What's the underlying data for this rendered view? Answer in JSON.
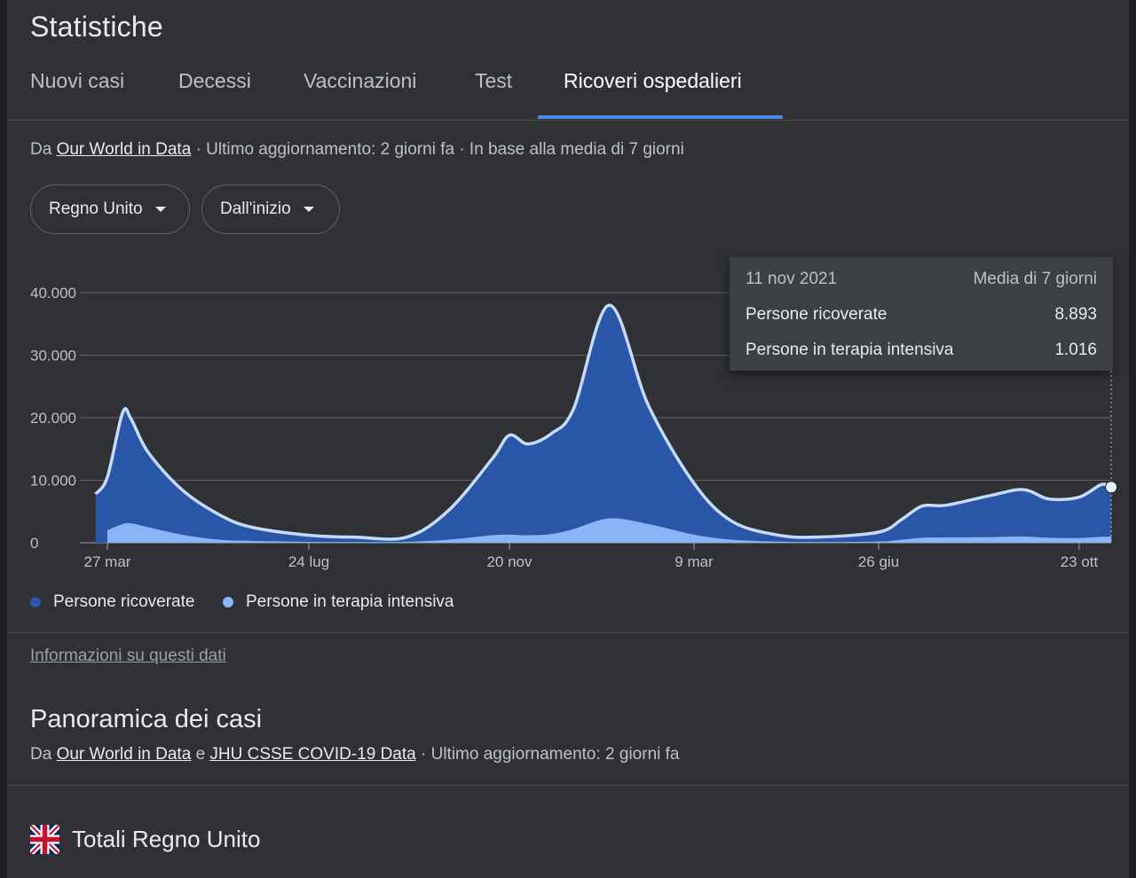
{
  "title": "Statistiche",
  "tabs": [
    {
      "label": "Nuovi casi"
    },
    {
      "label": "Decessi"
    },
    {
      "label": "Vaccinazioni"
    },
    {
      "label": "Test"
    },
    {
      "label": "Ricoveri ospedalieri",
      "active": true
    }
  ],
  "source": {
    "prefix": "Da",
    "link": "Our World in Data",
    "rest": "· Ultimo aggiornamento: 2 giorni fa · In base alla media di 7 giorni"
  },
  "filters": {
    "country": "Regno Unito",
    "range": "Dall'inizio"
  },
  "tooltip": {
    "date": "11 nov 2021",
    "note": "Media di 7 giorni",
    "rows": [
      {
        "label": "Persone ricoverate",
        "value": "8.893"
      },
      {
        "label": "Persone in terapia intensiva",
        "value": "1.016"
      }
    ]
  },
  "legend": [
    {
      "label": "Persone ricoverate",
      "color": "#2a56a8"
    },
    {
      "label": "Persone in terapia intensiva",
      "color": "#8ab4f8"
    }
  ],
  "chart_data": {
    "type": "area",
    "x_ticks": [
      "27 mar",
      "24 lug",
      "20 nov",
      "9 mar",
      "26 giu",
      "23 ott"
    ],
    "y_ticks": [
      "0",
      "10.000",
      "20.000",
      "30.000",
      "40.000"
    ],
    "ylim": [
      0,
      40000
    ],
    "grid": true,
    "legend_position": "bottom-left",
    "x": [
      "2020-03-20",
      "2020-03-27",
      "2020-04-05",
      "2020-04-10",
      "2020-04-20",
      "2020-05-10",
      "2020-06-01",
      "2020-06-20",
      "2020-07-24",
      "2020-08-20",
      "2020-09-20",
      "2020-10-15",
      "2020-11-10",
      "2020-11-20",
      "2020-12-01",
      "2020-12-15",
      "2020-12-28",
      "2021-01-18",
      "2021-02-10",
      "2021-03-09",
      "2021-03-31",
      "2021-04-26",
      "2021-05-20",
      "2021-06-26",
      "2021-07-10",
      "2021-07-22",
      "2021-08-05",
      "2021-09-01",
      "2021-09-20",
      "2021-10-05",
      "2021-10-23",
      "2021-11-05",
      "2021-11-11"
    ],
    "series": [
      {
        "name": "Persone ricoverate",
        "color": "#2a56a8",
        "values": [
          7800,
          10500,
          20800,
          19800,
          14500,
          8500,
          4500,
          2500,
          1200,
          900,
          900,
          5200,
          13500,
          17200,
          15800,
          17500,
          21500,
          38000,
          22000,
          9500,
          3500,
          1300,
          900,
          1700,
          3800,
          5900,
          6000,
          7600,
          8500,
          7000,
          7300,
          9300,
          8893
        ]
      },
      {
        "name": "Persone in terapia intensiva",
        "color": "#8ab4f8",
        "values": [
          0,
          2000,
          3000,
          3100,
          2500,
          1300,
          500,
          300,
          150,
          100,
          150,
          500,
          1200,
          1300,
          1200,
          1400,
          2200,
          3900,
          3000,
          1300,
          500,
          200,
          120,
          200,
          500,
          800,
          850,
          900,
          1000,
          800,
          750,
          950,
          1016
        ]
      }
    ]
  },
  "info_link": "Informazioni su questi dati",
  "overview": {
    "title": "Panoramica dei casi",
    "prefix": "Da",
    "link1": "Our World in Data",
    "mid": "e",
    "link2": "JHU CSSE COVID-19 Data",
    "rest": "· Ultimo aggiornamento: 2 giorni fa"
  },
  "totals": {
    "label": "Totali Regno Unito",
    "flag": "uk-flag-icon"
  }
}
